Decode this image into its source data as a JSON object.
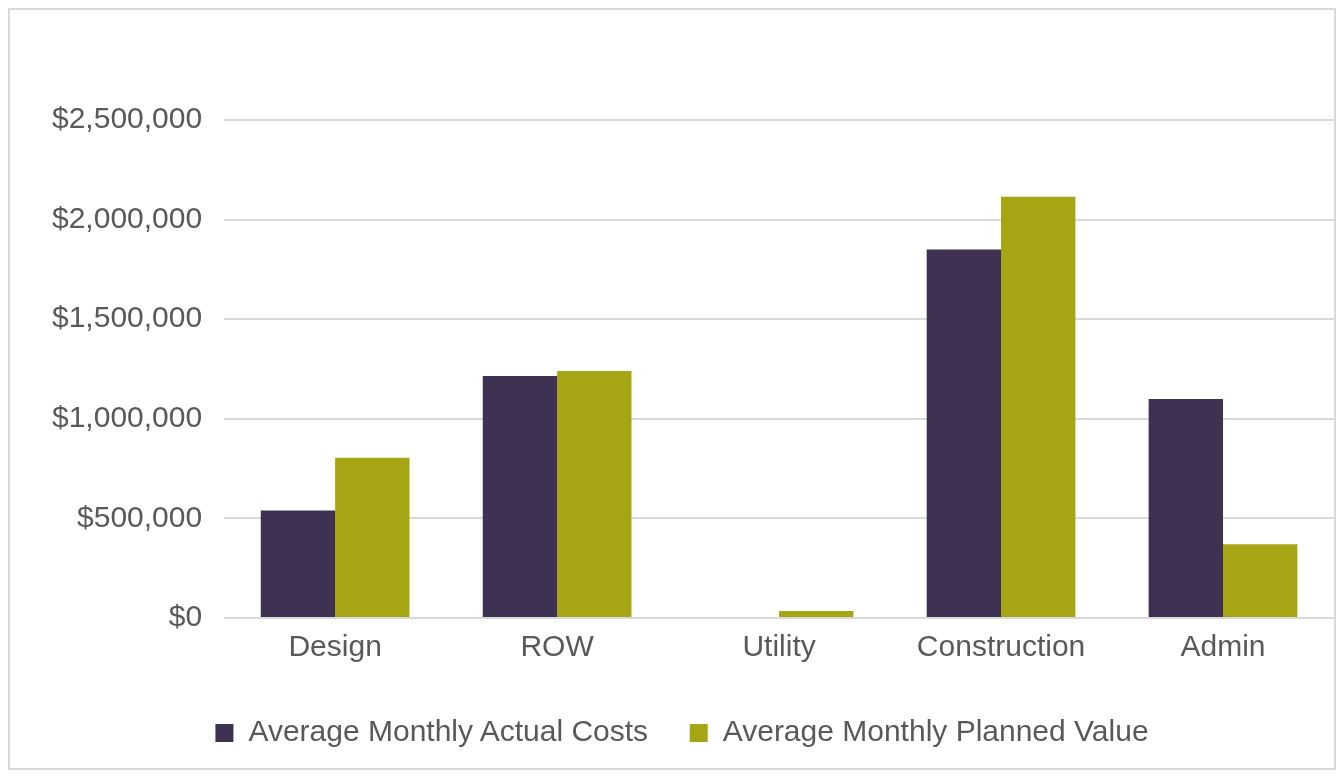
{
  "chart_data": {
    "type": "bar",
    "categories": [
      "Design",
      "ROW",
      "Utility",
      "Construction",
      "Admin"
    ],
    "series": [
      {
        "name": "Average Monthly Actual Costs",
        "color": "#3f3151",
        "values": [
          540000,
          1215000,
          0,
          1850000,
          1100000
        ]
      },
      {
        "name": "Average Monthly Planned Value",
        "color": "#a6a514",
        "values": [
          805000,
          1240000,
          35000,
          2115000,
          370000
        ]
      }
    ],
    "ylim": [
      0,
      2500000
    ],
    "yticks": [
      {
        "value": 0,
        "label": "$0"
      },
      {
        "value": 500000,
        "label": "$500,000"
      },
      {
        "value": 1000000,
        "label": "$1,000,000"
      },
      {
        "value": 1500000,
        "label": "$1,500,000"
      },
      {
        "value": 2000000,
        "label": "$2,000,000"
      },
      {
        "value": 2500000,
        "label": "$2,500,000"
      }
    ],
    "grid": "y",
    "legend": "bottom"
  }
}
